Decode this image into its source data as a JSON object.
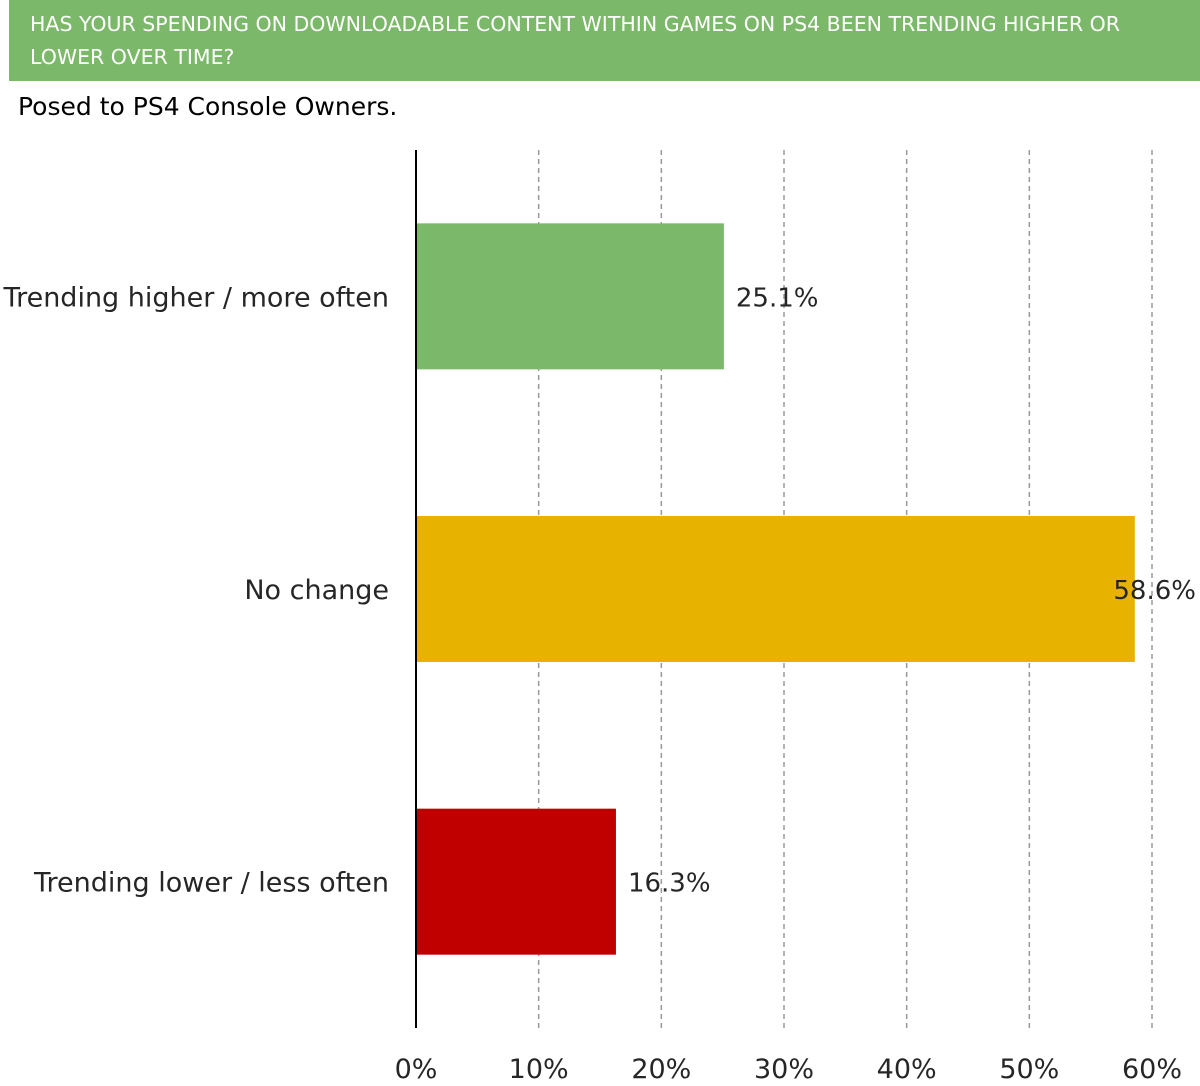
{
  "header": {
    "title": "HAS YOUR SPENDING ON DOWNLOADABLE CONTENT WITHIN GAMES ON PS4 BEEN TRENDING HIGHER OR LOWER OVER TIME?"
  },
  "subtitle": "Posed to PS4 Console Owners.",
  "chart_data": {
    "type": "bar",
    "orientation": "horizontal",
    "categories": [
      "Trending higher / more often",
      "No change",
      "Trending lower / less often"
    ],
    "values": [
      25.1,
      58.6,
      16.3
    ],
    "value_labels": [
      "25.1%",
      "58.6%",
      "16.3%"
    ],
    "colors": [
      "#7cb86a",
      "#e8b200",
      "#c00000"
    ],
    "xlim": [
      0,
      60
    ],
    "x_ticks": [
      0,
      10,
      20,
      30,
      40,
      50,
      60
    ],
    "x_tick_labels": [
      "0%",
      "10%",
      "20%",
      "30%",
      "40%",
      "50%",
      "60%"
    ],
    "grid": "vertical-dashed",
    "legend": "none"
  }
}
